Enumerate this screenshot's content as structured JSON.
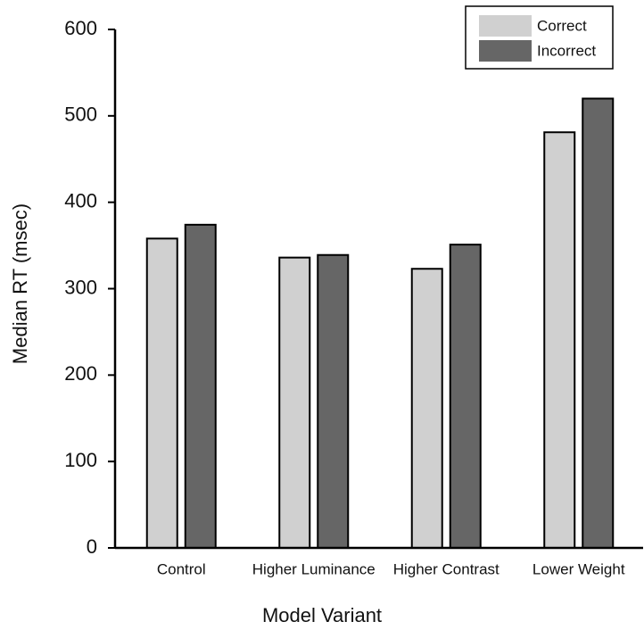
{
  "chart_data": {
    "type": "bar",
    "x_label": "Model Variant",
    "y_label": "Median RT (msec)",
    "categories": [
      "Control",
      "Higher Luminance",
      "Higher Contrast",
      "Lower Weight"
    ],
    "series": [
      {
        "name": "Correct",
        "color": "#d0d0d0",
        "values": [
          358,
          336,
          323,
          481
        ]
      },
      {
        "name": "Incorrect",
        "color": "#666666",
        "values": [
          374,
          339,
          351,
          520
        ]
      }
    ],
    "ylim": [
      0,
      600
    ],
    "yticks": [
      0,
      100,
      200,
      300,
      400,
      500,
      600
    ],
    "grid": false,
    "legend": "top-right"
  }
}
